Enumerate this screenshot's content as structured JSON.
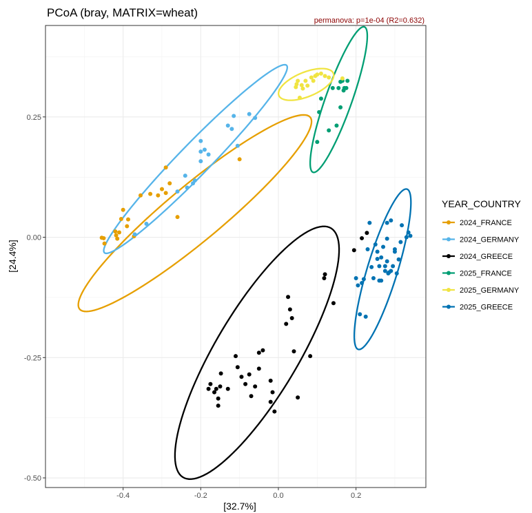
{
  "chart_data": {
    "type": "scatter",
    "title": "PCoA (bray, MATRIX=wheat)",
    "subtitle": "permanova: p=1e-04  (R2=0.632)",
    "xlabel": "[32.7%]",
    "ylabel": "[24.4%]",
    "xlim": [
      -0.6,
      0.38
    ],
    "ylim": [
      -0.52,
      0.44
    ],
    "x_ticks": [
      -0.4,
      -0.2,
      0.0,
      0.2
    ],
    "x_tick_labels": [
      "-0.4",
      "-0.2",
      "0.0",
      "0.2"
    ],
    "y_ticks": [
      -0.5,
      -0.25,
      0.0,
      0.25
    ],
    "y_tick_labels": [
      "-0.50",
      "-0.25",
      "0.00",
      "0.25"
    ],
    "grid": true,
    "legend_title": "YEAR_COUNTRY",
    "legend_position": "right",
    "series": [
      {
        "name": "2024_FRANCE",
        "color": "#E69F00",
        "points": [
          [
            -0.455,
            -0.001
          ],
          [
            -0.45,
            -0.002
          ],
          [
            -0.448,
            -0.013
          ],
          [
            -0.42,
            0.012
          ],
          [
            -0.418,
            0.004
          ],
          [
            -0.415,
            -0.003
          ],
          [
            -0.41,
            0.01
          ],
          [
            -0.405,
            0.038
          ],
          [
            -0.4,
            0.057
          ],
          [
            -0.39,
            0.023
          ],
          [
            -0.387,
            0.037
          ],
          [
            -0.372,
            0.002
          ],
          [
            -0.355,
            0.087
          ],
          [
            -0.33,
            0.09
          ],
          [
            -0.31,
            0.087
          ],
          [
            -0.3,
            0.1
          ],
          [
            -0.29,
            0.092
          ],
          [
            -0.28,
            0.112
          ],
          [
            -0.29,
            0.145
          ],
          [
            -0.26,
            0.042
          ],
          [
            -0.1,
            0.162
          ]
        ],
        "ellipse": {
          "center": [
            -0.215,
            0.05
          ],
          "semi_major": 0.358,
          "semi_minor": 0.062,
          "angle_deg": 33.5
        }
      },
      {
        "name": "2024_GERMANY",
        "color": "#56B4E9",
        "points": [
          [
            -0.34,
            0.028
          ],
          [
            -0.37,
            0.006
          ],
          [
            -0.26,
            0.095
          ],
          [
            -0.24,
            0.128
          ],
          [
            -0.235,
            0.103
          ],
          [
            -0.22,
            0.112
          ],
          [
            -0.215,
            0.118
          ],
          [
            -0.2,
            0.158
          ],
          [
            -0.2,
            0.178
          ],
          [
            -0.19,
            0.182
          ],
          [
            -0.18,
            0.172
          ],
          [
            -0.2,
            0.2
          ],
          [
            -0.13,
            0.232
          ],
          [
            -0.12,
            0.225
          ],
          [
            -0.115,
            0.252
          ],
          [
            -0.105,
            0.19
          ],
          [
            -0.075,
            0.256
          ],
          [
            -0.06,
            0.248
          ]
        ],
        "ellipse": {
          "center": [
            -0.2135,
            0.1625
          ],
          "semi_major": 0.305,
          "semi_minor": 0.036,
          "angle_deg": 39.5
        }
      },
      {
        "name": "2024_GREECE",
        "color": "#000000",
        "points": [
          [
            -0.175,
            -0.305
          ],
          [
            -0.18,
            -0.315
          ],
          [
            -0.165,
            -0.322
          ],
          [
            -0.16,
            -0.315
          ],
          [
            -0.155,
            -0.335
          ],
          [
            -0.155,
            -0.35
          ],
          [
            -0.15,
            -0.31
          ],
          [
            -0.148,
            -0.283
          ],
          [
            -0.13,
            -0.315
          ],
          [
            -0.11,
            -0.247
          ],
          [
            -0.105,
            -0.27
          ],
          [
            -0.095,
            -0.29
          ],
          [
            -0.085,
            -0.305
          ],
          [
            -0.075,
            -0.285
          ],
          [
            -0.07,
            -0.33
          ],
          [
            -0.06,
            -0.31
          ],
          [
            -0.05,
            -0.24
          ],
          [
            -0.05,
            -0.273
          ],
          [
            -0.04,
            -0.235
          ],
          [
            -0.02,
            -0.298
          ],
          [
            -0.02,
            -0.342
          ],
          [
            -0.015,
            -0.322
          ],
          [
            -0.01,
            -0.362
          ],
          [
            0.02,
            -0.18
          ],
          [
            0.025,
            -0.124
          ],
          [
            0.03,
            -0.15
          ],
          [
            0.035,
            -0.168
          ],
          [
            0.04,
            -0.237
          ],
          [
            0.05,
            -0.333
          ],
          [
            0.082,
            -0.247
          ],
          [
            0.118,
            -0.085
          ],
          [
            0.12,
            -0.077
          ],
          [
            0.142,
            -0.137
          ],
          [
            0.195,
            -0.027
          ],
          [
            0.215,
            -0.002
          ],
          [
            0.228,
            0.009
          ]
        ],
        "ellipse": {
          "center": [
            -0.055,
            -0.24
          ],
          "semi_major": 0.322,
          "semi_minor": 0.1,
          "angle_deg": 52.5
        }
      },
      {
        "name": "2025_FRANCE",
        "color": "#009E73",
        "points": [
          [
            0.1,
            0.198
          ],
          [
            0.105,
            0.26
          ],
          [
            0.11,
            0.288
          ],
          [
            0.13,
            0.222
          ],
          [
            0.14,
            0.31
          ],
          [
            0.15,
            0.232
          ],
          [
            0.155,
            0.31
          ],
          [
            0.16,
            0.27
          ],
          [
            0.165,
            0.325
          ],
          [
            0.168,
            0.305
          ],
          [
            0.17,
            0.31
          ],
          [
            0.175,
            0.31
          ],
          [
            0.178,
            0.325
          ],
          [
            0.16,
            0.323
          ]
        ],
        "ellipse": {
          "center": [
            0.1555,
            0.286
          ],
          "semi_major": 0.165,
          "semi_minor": 0.033,
          "angle_deg": 66
        }
      },
      {
        "name": "2025_GERMANY",
        "color": "#F0E442",
        "points": [
          [
            0.045,
            0.312
          ],
          [
            0.047,
            0.318
          ],
          [
            0.05,
            0.325
          ],
          [
            0.055,
            0.29
          ],
          [
            0.06,
            0.316
          ],
          [
            0.063,
            0.309
          ],
          [
            0.07,
            0.325
          ],
          [
            0.075,
            0.315
          ],
          [
            0.085,
            0.332
          ],
          [
            0.09,
            0.325
          ],
          [
            0.095,
            0.335
          ],
          [
            0.1,
            0.338
          ],
          [
            0.11,
            0.34
          ],
          [
            0.12,
            0.335
          ],
          [
            0.13,
            0.332
          ],
          [
            0.165,
            0.33
          ]
        ],
        "ellipse": {
          "center": [
            0.0715,
            0.3175
          ],
          "semi_major": 0.074,
          "semi_minor": 0.026,
          "angle_deg": 17
        }
      },
      {
        "name": "2025_GREECE",
        "color": "#0072B2",
        "points": [
          [
            0.2,
            -0.085
          ],
          [
            0.205,
            -0.1
          ],
          [
            0.21,
            -0.16
          ],
          [
            0.215,
            -0.095
          ],
          [
            0.22,
            -0.087
          ],
          [
            0.225,
            -0.165
          ],
          [
            0.23,
            -0.025
          ],
          [
            0.235,
            0.03
          ],
          [
            0.24,
            -0.062
          ],
          [
            0.245,
            -0.085
          ],
          [
            0.25,
            -0.015
          ],
          [
            0.255,
            -0.03
          ],
          [
            0.255,
            -0.045
          ],
          [
            0.26,
            -0.06
          ],
          [
            0.26,
            -0.09
          ],
          [
            0.265,
            -0.09
          ],
          [
            0.265,
            -0.042
          ],
          [
            0.27,
            -0.02
          ],
          [
            0.275,
            -0.07
          ],
          [
            0.275,
            -0.06
          ],
          [
            0.28,
            -0.003
          ],
          [
            0.28,
            -0.05
          ],
          [
            0.28,
            0.03
          ],
          [
            0.283,
            -0.075
          ],
          [
            0.285,
            -0.073
          ],
          [
            0.29,
            -0.07
          ],
          [
            0.295,
            -0.06
          ],
          [
            0.3,
            -0.025
          ],
          [
            0.3,
            -0.03
          ],
          [
            0.305,
            -0.075
          ],
          [
            0.31,
            -0.046
          ],
          [
            0.315,
            -0.01
          ],
          [
            0.318,
            0.025
          ],
          [
            0.33,
            0.0
          ],
          [
            0.335,
            0.01
          ],
          [
            0.34,
            0.003
          ],
          [
            0.29,
            0.035
          ]
        ],
        "ellipse": {
          "center": [
            0.2685,
            -0.0665
          ],
          "semi_major": 0.178,
          "semi_minor": 0.038,
          "angle_deg": 69
        }
      }
    ]
  }
}
